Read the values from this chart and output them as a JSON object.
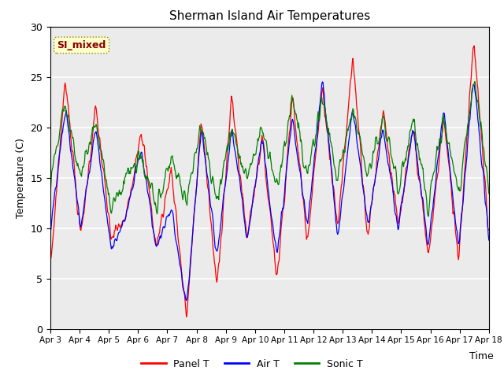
{
  "title": "Sherman Island Air Temperatures",
  "xlabel": "Time",
  "ylabel": "Temperature (C)",
  "ylim": [
    0,
    30
  ],
  "annotation": "SI_mixed",
  "bg_color": "#ebebeb",
  "fig_bg": "#ffffff",
  "grid_color": "#ffffff",
  "legend_labels": [
    "Panel T",
    "Air T",
    "Sonic T"
  ],
  "xtick_labels": [
    "Apr 3",
    "Apr 4",
    "Apr 5",
    "Apr 6",
    "Apr 7",
    "Apr 8",
    "Apr 9",
    "Apr 10",
    "Apr 11",
    "Apr 12",
    "Apr 13",
    "Apr 14",
    "Apr 15",
    "Apr 16",
    "Apr 17",
    "Apr 18"
  ],
  "n_days": 15,
  "pts_per_day": 48,
  "panel_t_peaks": [
    6,
    25,
    9,
    22,
    9,
    11,
    20,
    8,
    16,
    1,
    21,
    4,
    23,
    9,
    19,
    5,
    23,
    9,
    24,
    10,
    27,
    9,
    22,
    10,
    20,
    7,
    21,
    7,
    29,
    9
  ],
  "air_t_peaks": [
    10,
    22,
    10,
    20,
    8,
    11,
    18,
    8,
    12,
    2,
    20,
    7,
    20,
    9,
    19,
    7,
    21,
    10,
    25,
    9,
    22,
    10,
    20,
    10,
    20,
    8,
    22,
    8,
    25,
    9
  ],
  "sonic_t_peaks": [
    15,
    22,
    15,
    21,
    12,
    15,
    17,
    12,
    17,
    13,
    20,
    13,
    20,
    15,
    20,
    14,
    23,
    15,
    23,
    15,
    22,
    15,
    21,
    14,
    21,
    12,
    21,
    13,
    25,
    14
  ]
}
